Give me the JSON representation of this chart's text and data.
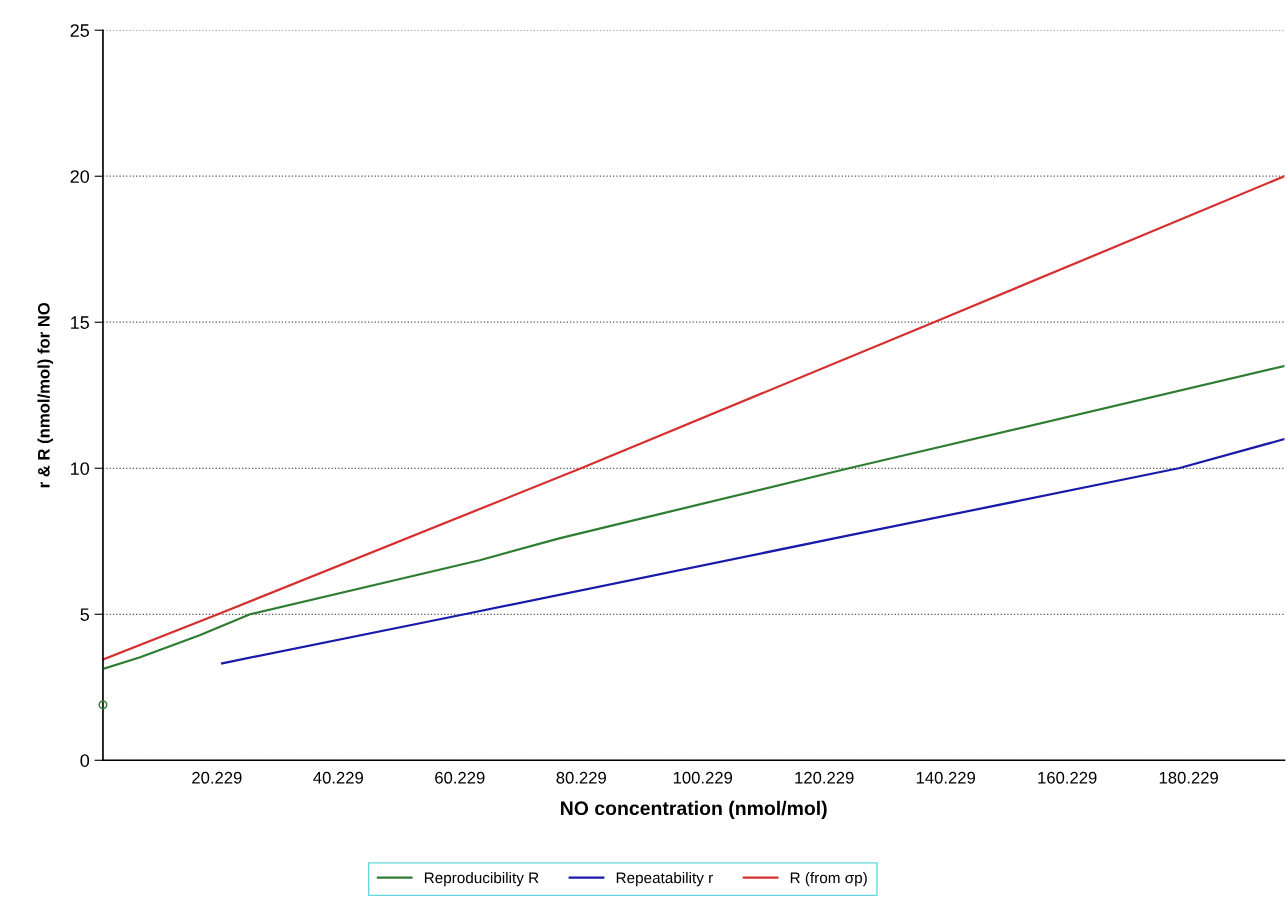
{
  "chart_data": {
    "type": "line",
    "xlabel": "NO concentration (nmol/mol)",
    "ylabel": "r & R (nmol/mol) for NO",
    "xlim": [
      1.48,
      196
    ],
    "ylim": [
      0,
      25
    ],
    "xticks": [
      20.229,
      40.229,
      60.229,
      80.229,
      100.229,
      120.229,
      140.229,
      160.229,
      180.229
    ],
    "yticks": [
      0,
      5,
      10,
      15,
      20,
      25
    ],
    "grid": "y",
    "legend": "bottom",
    "marker": "none",
    "line_style": "solid",
    "series": [
      {
        "name": "Reproducibility R",
        "color": "#2e7d32",
        "x": [
          1.8,
          7.6,
          17.4,
          25.7,
          63.5,
          76.6,
          124.3,
          196
        ],
        "values": [
          3.15,
          3.53,
          4.28,
          5.0,
          6.85,
          7.6,
          10.0,
          13.5
        ]
      },
      {
        "name": "Repeatability r",
        "color": "#1a1aa8",
        "x": [
          21.1,
          61,
          124.3,
          178.6,
          196
        ],
        "values": [
          3.32,
          5.0,
          7.7,
          10.0,
          11.0
        ]
      },
      {
        "name": "R (from σp)",
        "color": "#d62f2f",
        "x": [
          1.48,
          20.4,
          80.2,
          138.3,
          196
        ],
        "values": [
          3.45,
          5.0,
          10.0,
          15.0,
          20.0
        ]
      },
      {
        "type": "scatter",
        "color": "#2e7d32",
        "marker": "circle",
        "x": [
          1.48
        ],
        "values": [
          1.9
        ]
      }
    ]
  }
}
